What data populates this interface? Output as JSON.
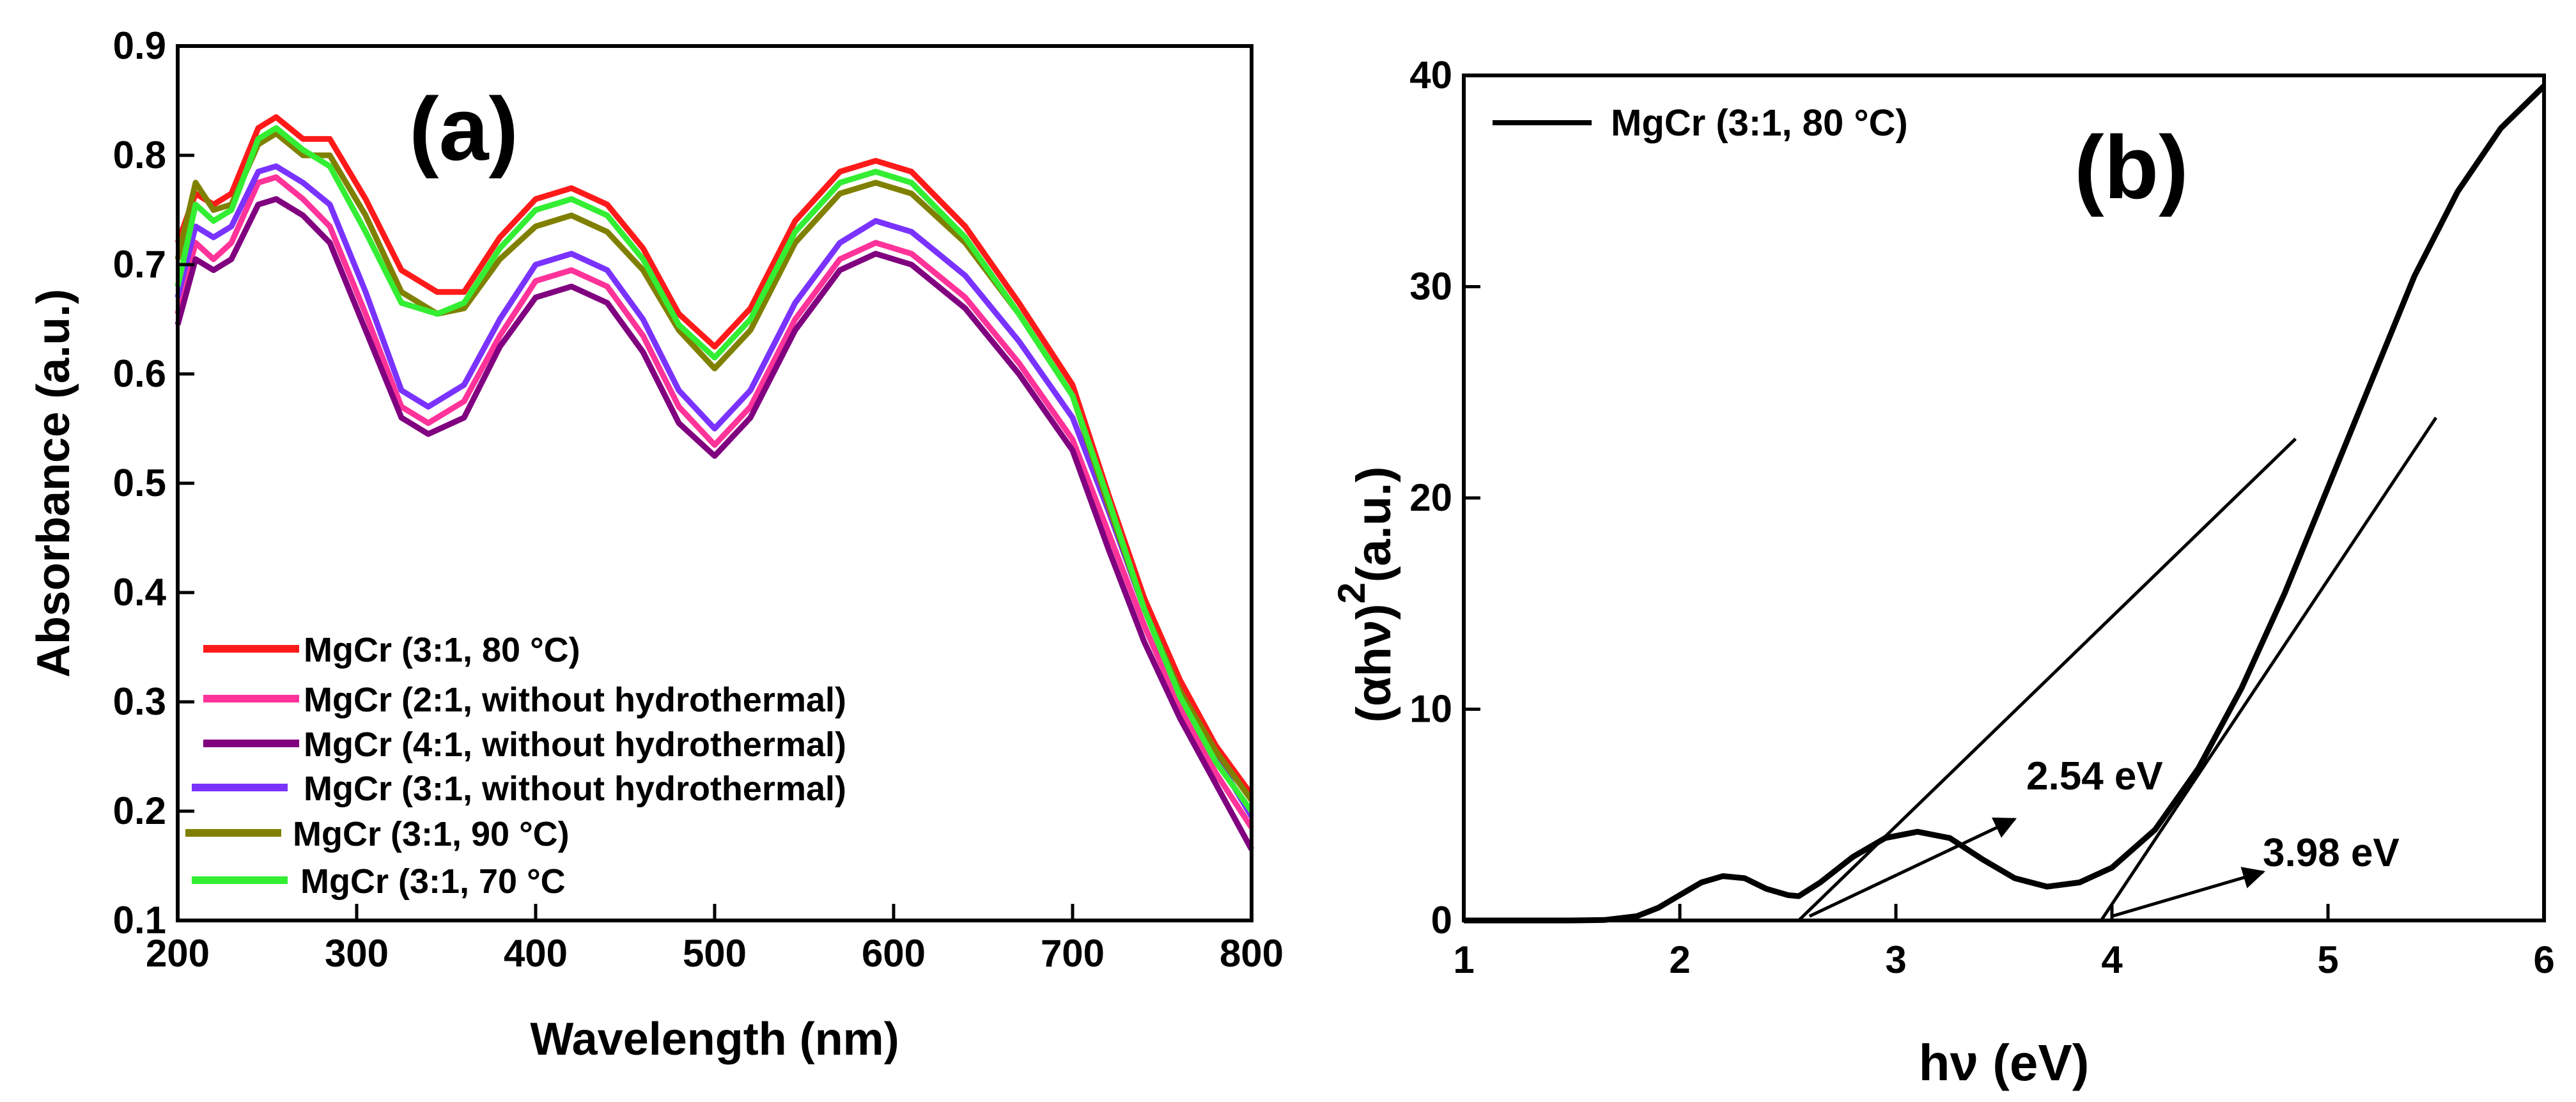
{
  "chart_data": [
    {
      "panel": "(a)",
      "type": "line",
      "xlabel": "Wavelength (nm)",
      "ylabel": "Absorbance (a.u.)",
      "xlim": [
        200,
        800
      ],
      "ylim": [
        0.1,
        0.9
      ],
      "xticks": [
        200,
        300,
        400,
        500,
        600,
        700,
        800
      ],
      "yticks": [
        0.1,
        0.2,
        0.3,
        0.4,
        0.5,
        0.6,
        0.7,
        0.8,
        0.9
      ],
      "legend_position": "bottom-left",
      "series": [
        {
          "name": "MgCr (3:1, 80 °C)",
          "color": "#ff1a1a",
          "points": [
            [
              200,
              0.72
            ],
            [
              210,
              0.765
            ],
            [
              220,
              0.755
            ],
            [
              230,
              0.765
            ],
            [
              245,
              0.825
            ],
            [
              255,
              0.835
            ],
            [
              270,
              0.815
            ],
            [
              285,
              0.815
            ],
            [
              305,
              0.76
            ],
            [
              325,
              0.695
            ],
            [
              345,
              0.675
            ],
            [
              360,
              0.675
            ],
            [
              380,
              0.725
            ],
            [
              400,
              0.76
            ],
            [
              420,
              0.77
            ],
            [
              440,
              0.755
            ],
            [
              460,
              0.715
            ],
            [
              480,
              0.655
            ],
            [
              500,
              0.625
            ],
            [
              520,
              0.66
            ],
            [
              545,
              0.74
            ],
            [
              570,
              0.785
            ],
            [
              590,
              0.795
            ],
            [
              610,
              0.785
            ],
            [
              640,
              0.735
            ],
            [
              670,
              0.665
            ],
            [
              700,
              0.59
            ],
            [
              720,
              0.49
            ],
            [
              740,
              0.395
            ],
            [
              760,
              0.32
            ],
            [
              780,
              0.26
            ],
            [
              800,
              0.215
            ]
          ]
        },
        {
          "name": "MgCr (2:1, without hydrothermal)",
          "color": "#ff3399",
          "points": [
            [
              200,
              0.655
            ],
            [
              210,
              0.72
            ],
            [
              220,
              0.705
            ],
            [
              230,
              0.72
            ],
            [
              245,
              0.775
            ],
            [
              255,
              0.78
            ],
            [
              270,
              0.76
            ],
            [
              285,
              0.735
            ],
            [
              305,
              0.655
            ],
            [
              325,
              0.57
            ],
            [
              340,
              0.555
            ],
            [
              360,
              0.575
            ],
            [
              380,
              0.635
            ],
            [
              400,
              0.685
            ],
            [
              420,
              0.695
            ],
            [
              440,
              0.68
            ],
            [
              460,
              0.635
            ],
            [
              480,
              0.57
            ],
            [
              500,
              0.535
            ],
            [
              520,
              0.57
            ],
            [
              545,
              0.65
            ],
            [
              570,
              0.705
            ],
            [
              590,
              0.72
            ],
            [
              610,
              0.71
            ],
            [
              640,
              0.67
            ],
            [
              670,
              0.61
            ],
            [
              700,
              0.54
            ],
            [
              720,
              0.455
            ],
            [
              740,
              0.37
            ],
            [
              760,
              0.295
            ],
            [
              780,
              0.235
            ],
            [
              800,
              0.185
            ]
          ]
        },
        {
          "name": "MgCr (4:1, without hydrothermal)",
          "color": "#800080",
          "points": [
            [
              200,
              0.645
            ],
            [
              210,
              0.705
            ],
            [
              220,
              0.695
            ],
            [
              230,
              0.705
            ],
            [
              245,
              0.755
            ],
            [
              255,
              0.76
            ],
            [
              270,
              0.745
            ],
            [
              285,
              0.72
            ],
            [
              305,
              0.64
            ],
            [
              325,
              0.56
            ],
            [
              340,
              0.545
            ],
            [
              360,
              0.56
            ],
            [
              380,
              0.625
            ],
            [
              400,
              0.67
            ],
            [
              420,
              0.68
            ],
            [
              440,
              0.665
            ],
            [
              460,
              0.62
            ],
            [
              480,
              0.555
            ],
            [
              500,
              0.525
            ],
            [
              520,
              0.56
            ],
            [
              545,
              0.64
            ],
            [
              570,
              0.695
            ],
            [
              590,
              0.71
            ],
            [
              610,
              0.7
            ],
            [
              640,
              0.66
            ],
            [
              670,
              0.6
            ],
            [
              700,
              0.53
            ],
            [
              720,
              0.44
            ],
            [
              740,
              0.355
            ],
            [
              760,
              0.285
            ],
            [
              780,
              0.225
            ],
            [
              800,
              0.165
            ]
          ]
        },
        {
          "name": "MgCr (3:1, without hydrothermal)",
          "color": "#7a33ff",
          "points": [
            [
              200,
              0.67
            ],
            [
              210,
              0.735
            ],
            [
              220,
              0.725
            ],
            [
              230,
              0.735
            ],
            [
              245,
              0.785
            ],
            [
              255,
              0.79
            ],
            [
              270,
              0.775
            ],
            [
              285,
              0.755
            ],
            [
              305,
              0.675
            ],
            [
              325,
              0.585
            ],
            [
              340,
              0.57
            ],
            [
              360,
              0.59
            ],
            [
              380,
              0.65
            ],
            [
              400,
              0.7
            ],
            [
              420,
              0.71
            ],
            [
              440,
              0.695
            ],
            [
              460,
              0.65
            ],
            [
              480,
              0.585
            ],
            [
              500,
              0.55
            ],
            [
              520,
              0.585
            ],
            [
              545,
              0.665
            ],
            [
              570,
              0.72
            ],
            [
              590,
              0.74
            ],
            [
              610,
              0.73
            ],
            [
              640,
              0.69
            ],
            [
              670,
              0.63
            ],
            [
              700,
              0.56
            ],
            [
              720,
              0.475
            ],
            [
              740,
              0.385
            ],
            [
              760,
              0.31
            ],
            [
              780,
              0.25
            ],
            [
              800,
              0.195
            ]
          ]
        },
        {
          "name": "MgCr (3:1, 90 °C)",
          "color": "#808000",
          "points": [
            [
              200,
              0.705
            ],
            [
              210,
              0.775
            ],
            [
              220,
              0.75
            ],
            [
              230,
              0.755
            ],
            [
              245,
              0.81
            ],
            [
              255,
              0.82
            ],
            [
              270,
              0.8
            ],
            [
              285,
              0.8
            ],
            [
              305,
              0.745
            ],
            [
              325,
              0.675
            ],
            [
              345,
              0.655
            ],
            [
              360,
              0.66
            ],
            [
              380,
              0.705
            ],
            [
              400,
              0.735
            ],
            [
              420,
              0.745
            ],
            [
              440,
              0.73
            ],
            [
              460,
              0.695
            ],
            [
              480,
              0.64
            ],
            [
              500,
              0.605
            ],
            [
              520,
              0.64
            ],
            [
              545,
              0.72
            ],
            [
              570,
              0.765
            ],
            [
              590,
              0.775
            ],
            [
              610,
              0.765
            ],
            [
              640,
              0.72
            ],
            [
              670,
              0.655
            ],
            [
              700,
              0.58
            ],
            [
              720,
              0.48
            ],
            [
              740,
              0.385
            ],
            [
              760,
              0.31
            ],
            [
              780,
              0.255
            ],
            [
              800,
              0.21
            ]
          ]
        },
        {
          "name": "MgCr (3:1, 70  °C",
          "color": "#33ee33",
          "points": [
            [
              200,
              0.68
            ],
            [
              210,
              0.755
            ],
            [
              220,
              0.74
            ],
            [
              230,
              0.75
            ],
            [
              245,
              0.815
            ],
            [
              255,
              0.825
            ],
            [
              270,
              0.805
            ],
            [
              285,
              0.79
            ],
            [
              305,
              0.73
            ],
            [
              325,
              0.665
            ],
            [
              345,
              0.655
            ],
            [
              360,
              0.665
            ],
            [
              380,
              0.715
            ],
            [
              400,
              0.75
            ],
            [
              420,
              0.76
            ],
            [
              440,
              0.745
            ],
            [
              460,
              0.705
            ],
            [
              480,
              0.645
            ],
            [
              500,
              0.615
            ],
            [
              520,
              0.65
            ],
            [
              545,
              0.73
            ],
            [
              570,
              0.775
            ],
            [
              590,
              0.785
            ],
            [
              610,
              0.775
            ],
            [
              640,
              0.725
            ],
            [
              670,
              0.655
            ],
            [
              700,
              0.58
            ],
            [
              720,
              0.485
            ],
            [
              740,
              0.385
            ],
            [
              760,
              0.305
            ],
            [
              780,
              0.245
            ],
            [
              800,
              0.2
            ]
          ]
        }
      ]
    },
    {
      "panel": "(b)",
      "type": "line",
      "xlabel": "hν (eV)",
      "ylabel_main": "(αhν)",
      "ylabel_sup": "2",
      "ylabel_unit": "(a.u.)",
      "xlim": [
        1,
        6
      ],
      "ylim": [
        0,
        40
      ],
      "xticks": [
        1,
        2,
        3,
        4,
        5,
        6
      ],
      "yticks": [
        0,
        10,
        20,
        30,
        40
      ],
      "legend_position": "top-left",
      "series": [
        {
          "name": "MgCr (3:1, 80 °C)",
          "color": "#000000",
          "points": [
            [
              1.0,
              0
            ],
            [
              1.5,
              0
            ],
            [
              1.65,
              0.02
            ],
            [
              1.8,
              0.2
            ],
            [
              1.9,
              0.6
            ],
            [
              2.0,
              1.2
            ],
            [
              2.1,
              1.8
            ],
            [
              2.2,
              2.1
            ],
            [
              2.3,
              2.0
            ],
            [
              2.4,
              1.5
            ],
            [
              2.5,
              1.2
            ],
            [
              2.55,
              1.15
            ],
            [
              2.65,
              1.8
            ],
            [
              2.8,
              3.0
            ],
            [
              2.95,
              3.9
            ],
            [
              3.1,
              4.2
            ],
            [
              3.25,
              3.9
            ],
            [
              3.4,
              2.9
            ],
            [
              3.55,
              2.0
            ],
            [
              3.7,
              1.6
            ],
            [
              3.85,
              1.8
            ],
            [
              4.0,
              2.5
            ],
            [
              4.2,
              4.3
            ],
            [
              4.4,
              7.2
            ],
            [
              4.6,
              11.0
            ],
            [
              4.8,
              15.5
            ],
            [
              5.0,
              20.5
            ],
            [
              5.2,
              25.5
            ],
            [
              5.4,
              30.5
            ],
            [
              5.6,
              34.5
            ],
            [
              5.8,
              37.5
            ],
            [
              6.0,
              39.5
            ]
          ]
        }
      ],
      "tangents": [
        {
          "name": "tangent-1",
          "from": [
            2.55,
            0
          ],
          "to": [
            4.85,
            22.8
          ]
        },
        {
          "name": "tangent-2",
          "from": [
            3.95,
            0
          ],
          "to": [
            5.5,
            23.8
          ]
        }
      ],
      "annotations": [
        {
          "text": "2.54 eV",
          "arrow_from": [
            2.6,
            0.2
          ],
          "arrow_to": [
            3.55,
            4.8
          ]
        },
        {
          "text": "3.98 eV",
          "arrow_from": [
            4.0,
            0.2
          ],
          "arrow_to": [
            4.7,
            2.3
          ]
        }
      ]
    }
  ]
}
